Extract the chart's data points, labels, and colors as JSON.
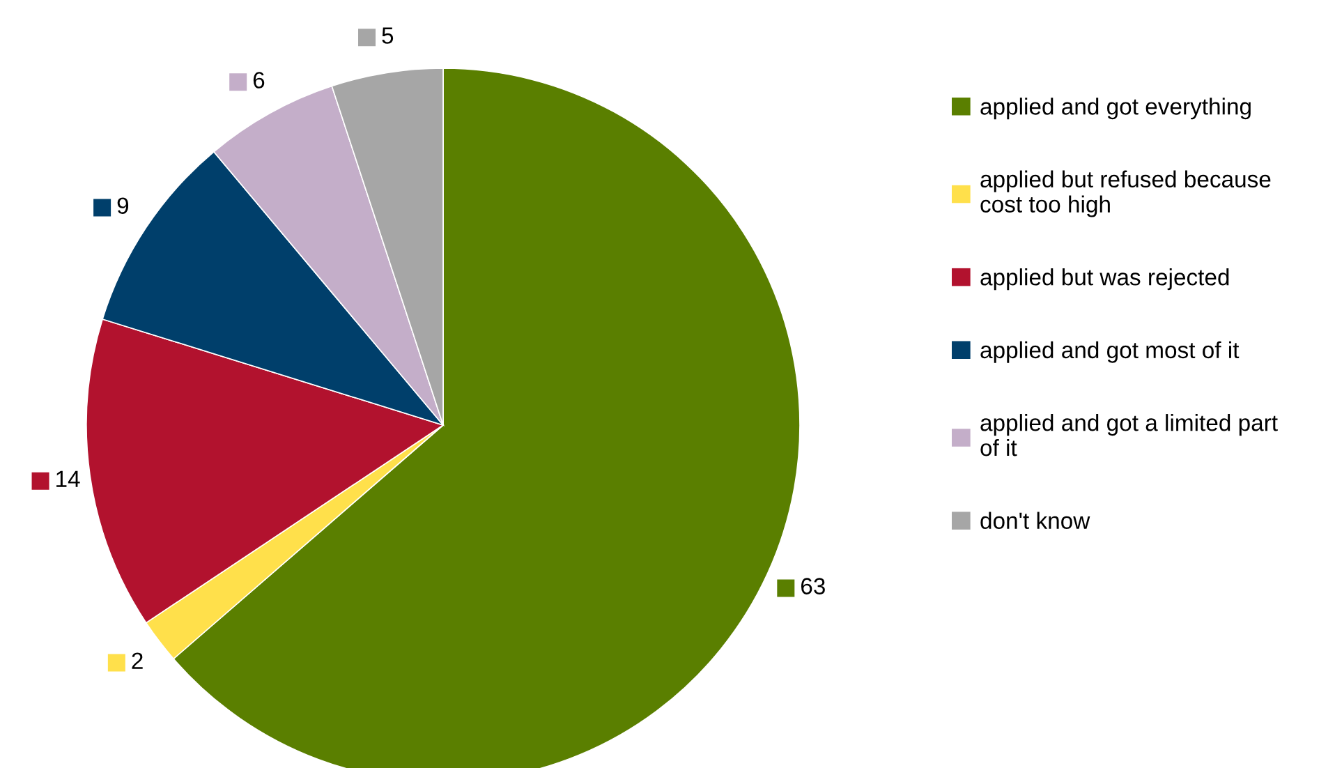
{
  "chart_data": {
    "type": "pie",
    "categories": [
      "applied and got everything",
      "applied but refused because\ncost too high",
      "applied but was rejected",
      "applied and got most of it",
      "applied and got a limited part\nof it",
      "don't know"
    ],
    "values": [
      63,
      2,
      14,
      9,
      6,
      5
    ],
    "colors": [
      "#5a7f00",
      "#ffe04b",
      "#b2122e",
      "#003f6b",
      "#c4aec9",
      "#a6a6a6"
    ],
    "data_labels": true,
    "legend": "right"
  }
}
